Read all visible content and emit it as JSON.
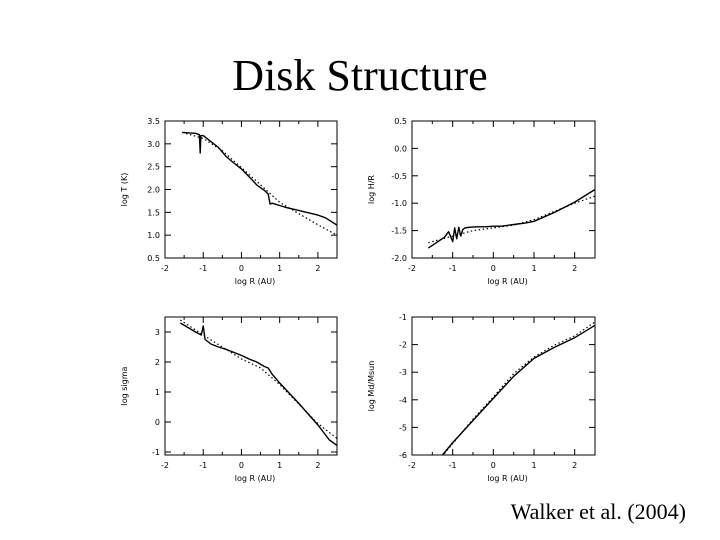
{
  "slide": {
    "title": "Disk Structure",
    "citation": "Walker et al. (2004)"
  },
  "colors": {
    "ink": "#000000",
    "background": "#ffffff"
  },
  "chart_data": [
    {
      "type": "line",
      "xlabel": "log R (AU)",
      "ylabel": "log T (K)",
      "xlim": [
        -2,
        2.5
      ],
      "ylim": [
        0.5,
        3.5
      ],
      "xticks": [
        -2,
        -1,
        0,
        1,
        2
      ],
      "yticks": [
        0.5,
        1.0,
        1.5,
        2.0,
        2.5,
        3.0,
        3.5
      ],
      "ytick_labels": [
        "0.5",
        "1.0",
        "1.5",
        "2.0",
        "2.5",
        "3.0",
        "3.5"
      ],
      "grid": false,
      "series": [
        {
          "style": "solid",
          "x": [
            -1.55,
            -1.2,
            -1.1,
            -1.08,
            -1.06,
            -1.0,
            -0.8,
            -0.6,
            -0.4,
            -0.2,
            0.0,
            0.2,
            0.4,
            0.6,
            0.7,
            0.75,
            0.8,
            1.0,
            1.2,
            1.4,
            1.6,
            1.8,
            2.0,
            2.2,
            2.5
          ],
          "y": [
            3.25,
            3.23,
            3.2,
            2.8,
            3.18,
            3.18,
            3.05,
            2.92,
            2.72,
            2.58,
            2.45,
            2.28,
            2.1,
            1.98,
            1.9,
            1.68,
            1.7,
            1.65,
            1.6,
            1.56,
            1.52,
            1.48,
            1.44,
            1.38,
            1.22
          ]
        },
        {
          "style": "dotted",
          "x": [
            -1.55,
            -1.0,
            -0.5,
            0.0,
            0.5,
            1.0,
            1.5,
            2.0,
            2.5
          ],
          "y": [
            3.25,
            3.12,
            2.85,
            2.48,
            2.1,
            1.72,
            1.47,
            1.23,
            1.0
          ]
        }
      ]
    },
    {
      "type": "line",
      "xlabel": "log R (AU)",
      "ylabel": "log H/R",
      "xlim": [
        -2,
        2.5
      ],
      "ylim": [
        -2.0,
        0.5
      ],
      "xticks": [
        -2,
        -1,
        0,
        1,
        2
      ],
      "yticks": [
        -2.0,
        -1.5,
        -1.0,
        -0.5,
        0.0,
        0.5
      ],
      "ytick_labels": [
        "-2.0",
        "-1.5",
        "-1.0",
        "-0.5",
        "0.0",
        "0.5"
      ],
      "grid": false,
      "series": [
        {
          "style": "solid",
          "x": [
            -1.6,
            -1.4,
            -1.2,
            -1.1,
            -1.0,
            -0.95,
            -0.9,
            -0.85,
            -0.8,
            -0.75,
            -0.7,
            -0.6,
            -0.4,
            -0.2,
            0.0,
            0.2,
            0.4,
            0.6,
            0.8,
            1.0,
            1.5,
            2.0,
            2.5
          ],
          "y": [
            -1.82,
            -1.72,
            -1.62,
            -1.52,
            -1.7,
            -1.45,
            -1.65,
            -1.44,
            -1.6,
            -1.48,
            -1.45,
            -1.44,
            -1.43,
            -1.43,
            -1.42,
            -1.42,
            -1.4,
            -1.38,
            -1.36,
            -1.33,
            -1.17,
            -0.98,
            -0.75
          ]
        },
        {
          "style": "dotted",
          "x": [
            -1.6,
            -1.0,
            -0.5,
            0.0,
            0.5,
            1.0,
            1.5,
            2.0,
            2.5
          ],
          "y": [
            -1.72,
            -1.6,
            -1.5,
            -1.45,
            -1.4,
            -1.3,
            -1.15,
            -1.0,
            -0.87
          ]
        }
      ]
    },
    {
      "type": "line",
      "xlabel": "log R (AU)",
      "ylabel": "log sigma",
      "xlim": [
        -2,
        2.5
      ],
      "ylim": [
        -1.1,
        3.5
      ],
      "xticks": [
        -2,
        -1,
        0,
        1,
        2
      ],
      "yticks": [
        -1,
        0,
        1,
        2,
        3
      ],
      "ytick_labels": [
        "-1",
        "0",
        "1",
        "2",
        "3"
      ],
      "grid": false,
      "series": [
        {
          "style": "solid",
          "x": [
            -1.6,
            -1.2,
            -1.05,
            -1.0,
            -0.95,
            -0.8,
            -0.6,
            -0.4,
            -0.2,
            0.0,
            0.2,
            0.4,
            0.6,
            0.7,
            0.75,
            0.8,
            1.0,
            1.5,
            2.0,
            2.3,
            2.5
          ],
          "y": [
            3.3,
            3.0,
            2.9,
            3.2,
            2.75,
            2.6,
            2.5,
            2.42,
            2.32,
            2.22,
            2.1,
            2.0,
            1.85,
            1.8,
            1.7,
            1.6,
            1.3,
            0.62,
            -0.1,
            -0.6,
            -0.78
          ]
        },
        {
          "style": "dotted",
          "x": [
            -1.6,
            -1.0,
            -0.5,
            0.0,
            0.5,
            1.0,
            1.5,
            2.0,
            2.5
          ],
          "y": [
            3.4,
            2.9,
            2.5,
            2.1,
            1.8,
            1.25,
            0.6,
            -0.05,
            -0.55
          ]
        }
      ]
    },
    {
      "type": "line",
      "xlabel": "log R (AU)",
      "ylabel": "log Md/Msun",
      "xlim": [
        -2,
        2.5
      ],
      "ylim": [
        -6,
        -1
      ],
      "xticks": [
        -2,
        -1,
        0,
        1,
        2
      ],
      "yticks": [
        -6,
        -5,
        -4,
        -3,
        -2,
        -1
      ],
      "ytick_labels": [
        "-6",
        "-5",
        "-4",
        "-3",
        "-2",
        "-1"
      ],
      "grid": false,
      "series": [
        {
          "style": "solid",
          "x": [
            -1.25,
            -1.0,
            -0.5,
            0.0,
            0.5,
            1.0,
            1.5,
            2.0,
            2.5
          ],
          "y": [
            -6.0,
            -5.55,
            -4.75,
            -3.95,
            -3.15,
            -2.5,
            -2.1,
            -1.75,
            -1.3
          ]
        },
        {
          "style": "dotted",
          "x": [
            -1.2,
            -0.5,
            0.0,
            0.5,
            1.0,
            1.5,
            2.0,
            2.5
          ],
          "y": [
            -5.95,
            -4.7,
            -3.9,
            -3.05,
            -2.45,
            -2.02,
            -1.68,
            -1.18
          ]
        }
      ]
    }
  ]
}
